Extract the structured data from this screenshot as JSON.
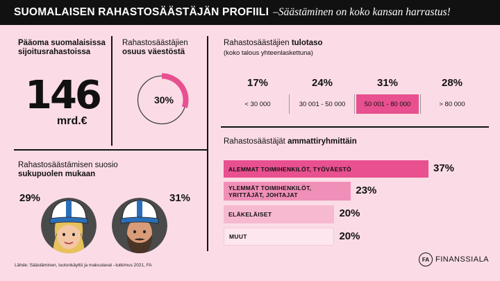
{
  "header": {
    "title": "SUOMALAISEN RAHASTOSÄÄSTÄJÄN PROFIILI",
    "subtitle": "–Säästäminen on koko kansan harrastus!"
  },
  "capital": {
    "label": "Pääoma suomalaisissa sijoitusrahastoissa",
    "value": "146",
    "unit": "mrd.€"
  },
  "share": {
    "label_line1": "Rahastosäästäjien",
    "label_line2": "osuus väestöstä",
    "value_text": "30%",
    "fraction": 0.3,
    "color": "#e8508f"
  },
  "gender": {
    "label_line1": "Rahastosäästämisen suosio",
    "label_line2": "sukupuolen mukaan",
    "female_pct": "29%",
    "male_pct": "31%"
  },
  "income": {
    "title_normal": "Rahastosäästäjien ",
    "title_bold": "tulotaso",
    "note": "(koko talous yhteenlaskettuna)",
    "brackets": [
      {
        "pct": "17%",
        "range": "< 30 000",
        "highlight": false
      },
      {
        "pct": "24%",
        "range": "30 001 - 50 000",
        "highlight": false
      },
      {
        "pct": "31%",
        "range": "50 001 - 80 000",
        "highlight": true
      },
      {
        "pct": "28%",
        "range": "> 80 000",
        "highlight": false
      }
    ]
  },
  "occupation": {
    "title_normal": "Rahastosäästäjät ",
    "title_bold": "ammattiryhmittäin",
    "groups": [
      {
        "label_line1": "ALEMMAT TOIMIHENKILÖT, TYÖVÄESTÖ",
        "label_line2": "",
        "pct": "37%",
        "value": 37,
        "color": "#e8508f"
      },
      {
        "label_line1": "YLEMMÄT TOIMIHENKILÖT,",
        "label_line2": "YRITTÄJÄT, JOHTAJAT",
        "pct": "23%",
        "value": 23,
        "color": "#f08fb8"
      },
      {
        "label_line1": "ELÄKELÄISET",
        "label_line2": "",
        "pct": "20%",
        "value": 20,
        "color": "#f6b9d0"
      },
      {
        "label_line1": "MUUT",
        "label_line2": "",
        "pct": "20%",
        "value": 20,
        "color": "#fde6ee"
      }
    ]
  },
  "footer": {
    "source": "Lähde: Säästäminen, luotonkäyttö ja maksutavat –tutkimus 2021, FA"
  },
  "logo": {
    "mark": "FA",
    "name": "FINANSSIALA"
  }
}
